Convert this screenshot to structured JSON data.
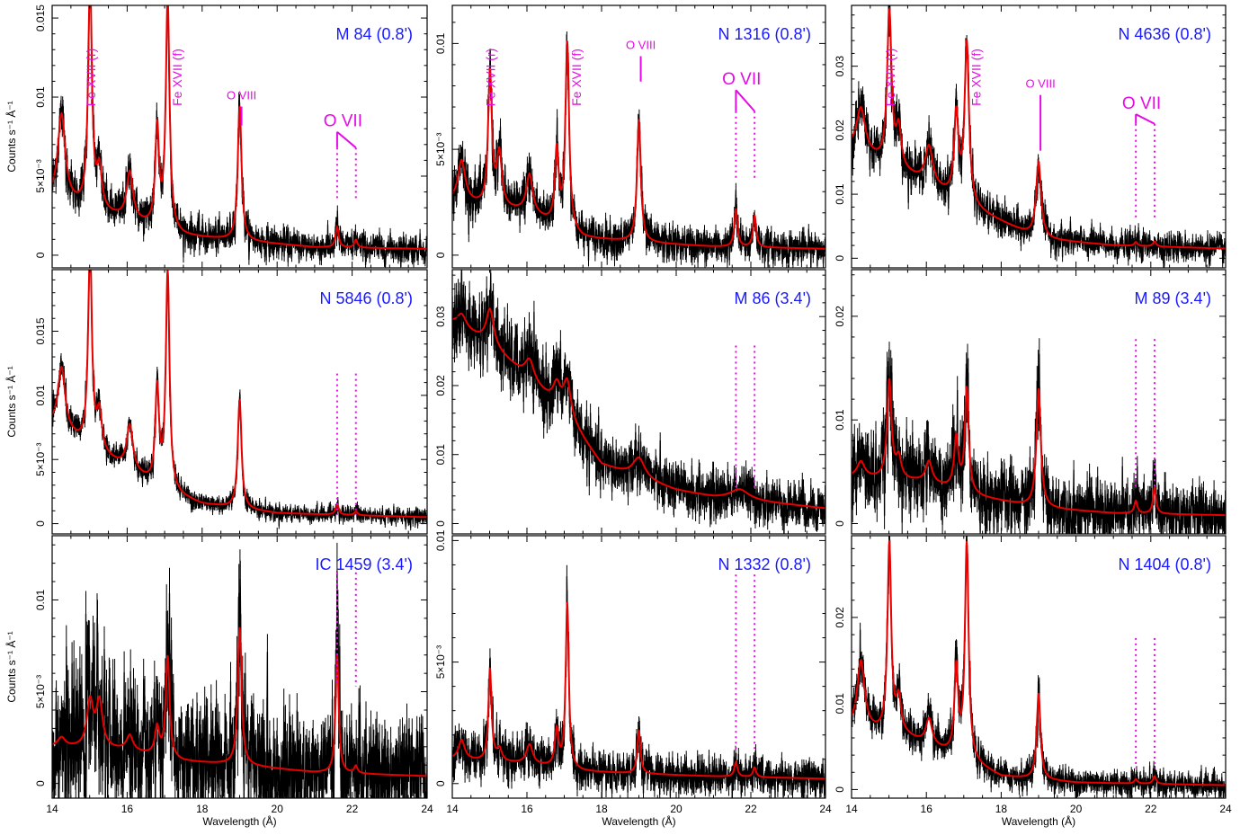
{
  "figure": {
    "xlabel": "Wavelength (Å)",
    "ylabel": "Counts s⁻¹ Å⁻¹",
    "colors": {
      "data": "#000000",
      "model": "#e60000",
      "annotation": "#e60ae6",
      "title": "#1a1aff"
    }
  },
  "chart_data": [
    {
      "type": "line",
      "title": "M 84 (0.8')",
      "xlim": [
        14,
        24
      ],
      "ylim": [
        -0.0008,
        0.0158
      ],
      "yticks": [
        0,
        0.005,
        0.01,
        0.015
      ],
      "ytick_labels": [
        "0",
        "5×10⁻³",
        "0.01",
        "0.015"
      ],
      "xticks": [
        14,
        16,
        18,
        20,
        22,
        24
      ],
      "xtick_labels": [
        "",
        "",
        "",
        "",
        "",
        ""
      ],
      "baseline": [
        [
          14,
          0.0035
        ],
        [
          16,
          0.0022
        ],
        [
          17.5,
          0.0012
        ],
        [
          19,
          0.0009
        ],
        [
          21,
          0.0005
        ],
        [
          24,
          0.0004
        ]
      ],
      "peaks": [
        [
          14.25,
          0.0055,
          0.12
        ],
        [
          15.01,
          0.0145,
          0.06
        ],
        [
          15.26,
          0.0025,
          0.08
        ],
        [
          16.07,
          0.003,
          0.1
        ],
        [
          16.8,
          0.0062,
          0.06
        ],
        [
          17.08,
          0.0145,
          0.06
        ],
        [
          19.0,
          0.0085,
          0.06
        ],
        [
          21.6,
          0.0013,
          0.05
        ],
        [
          22.1,
          0.0005,
          0.05
        ]
      ],
      "noise": 0.0007,
      "annotations": {
        "fe_r": "Fe XVII (r)",
        "fe_f": "Fe XVII (f)",
        "o8": "O VIII",
        "o7": "O VII"
      },
      "oviii_marker": [
        0.0094,
        0.0082
      ],
      "ovii_line_top": 0.0078,
      "ovii_solid_bottom": 0.0068,
      "ovii_dotted_bottom": 0.0035
    },
    {
      "type": "line",
      "title": "N 1316 (0.8')",
      "xlim": [
        14,
        24
      ],
      "ylim": [
        -0.0006,
        0.0118
      ],
      "yticks": [
        0,
        0.005,
        0.01
      ],
      "ytick_labels": [
        "0",
        "5×10⁻³",
        "0.01"
      ],
      "xticks": [
        14,
        16,
        18,
        20,
        22,
        24
      ],
      "xtick_labels": [
        "",
        "",
        "",
        "",
        "",
        ""
      ],
      "baseline": [
        [
          14,
          0.0025
        ],
        [
          16,
          0.002
        ],
        [
          17.5,
          0.0008
        ],
        [
          19,
          0.0006
        ],
        [
          21,
          0.0004
        ],
        [
          24,
          0.0003
        ]
      ],
      "peaks": [
        [
          14.25,
          0.002,
          0.12
        ],
        [
          15.01,
          0.0063,
          0.06
        ],
        [
          15.26,
          0.0025,
          0.08
        ],
        [
          16.07,
          0.0018,
          0.1
        ],
        [
          16.8,
          0.0035,
          0.06
        ],
        [
          17.08,
          0.0088,
          0.06
        ],
        [
          19.0,
          0.0058,
          0.06
        ],
        [
          21.6,
          0.0018,
          0.05
        ],
        [
          22.1,
          0.0015,
          0.05
        ]
      ],
      "noise": 0.0006,
      "annotations": {
        "fe_r": "Fe XVII (r)",
        "fe_f": "Fe XVII (f)",
        "o8": "O VIII",
        "o7": "O VII"
      },
      "oviii_marker": [
        0.0094,
        0.0082
      ],
      "ovii_line_top": 0.0078,
      "ovii_solid_bottom": 0.0068,
      "ovii_dotted_bottom": 0.0035
    },
    {
      "type": "line",
      "title": "N 4636 (0.8')",
      "xlim": [
        14,
        24
      ],
      "ylim": [
        -0.0015,
        0.0395
      ],
      "yticks": [
        0,
        0.01,
        0.02,
        0.03
      ],
      "ytick_labels": [
        "0",
        "0.01",
        "0.02",
        "0.03"
      ],
      "xticks": [
        14,
        16,
        18,
        20,
        22,
        24
      ],
      "xtick_labels": [
        "",
        "",
        "",
        "",
        "",
        ""
      ],
      "baseline": [
        [
          14,
          0.017
        ],
        [
          15.5,
          0.013
        ],
        [
          17.5,
          0.007
        ],
        [
          19,
          0.003
        ],
        [
          21,
          0.002
        ],
        [
          24,
          0.0015
        ]
      ],
      "peaks": [
        [
          14.25,
          0.007,
          0.14
        ],
        [
          15.01,
          0.024,
          0.07
        ],
        [
          15.26,
          0.006,
          0.08
        ],
        [
          16.07,
          0.006,
          0.12
        ],
        [
          16.8,
          0.013,
          0.07
        ],
        [
          17.08,
          0.025,
          0.07
        ],
        [
          19.0,
          0.012,
          0.08
        ],
        [
          21.6,
          0.0006,
          0.05
        ],
        [
          22.1,
          0.0008,
          0.05
        ]
      ],
      "noise": 0.0016,
      "annotations": {
        "fe_r": "Fe XVII (r)",
        "fe_f": "Fe XVII (f)",
        "o8": "O VIII",
        "o7": "O VII"
      },
      "oviii_marker": [
        0.0255,
        0.0168
      ],
      "ovii_line_top": 0.0225,
      "ovii_solid_bottom": 0.021,
      "ovii_dotted_bottom": 0.0062
    },
    {
      "type": "line",
      "title": "N 5846 (0.8')",
      "xlim": [
        14,
        24
      ],
      "ylim": [
        -0.0008,
        0.0198
      ],
      "yticks": [
        0,
        0.005,
        0.01,
        0.015
      ],
      "ytick_labels": [
        "0",
        "5×10⁻³",
        "0.01",
        "0.015"
      ],
      "xticks": [
        14,
        16,
        18,
        20,
        22,
        24
      ],
      "xtick_labels": [
        "",
        "",
        "",
        "",
        "",
        ""
      ],
      "baseline": [
        [
          14,
          0.0075
        ],
        [
          15.5,
          0.005
        ],
        [
          17,
          0.0025
        ],
        [
          18,
          0.0015
        ],
        [
          20,
          0.0008
        ],
        [
          24,
          0.0005
        ]
      ],
      "peaks": [
        [
          14.25,
          0.005,
          0.12
        ],
        [
          15.01,
          0.0155,
          0.06
        ],
        [
          15.26,
          0.003,
          0.08
        ],
        [
          16.07,
          0.0035,
          0.1
        ],
        [
          16.8,
          0.0075,
          0.06
        ],
        [
          17.08,
          0.017,
          0.06
        ],
        [
          19.0,
          0.0085,
          0.06
        ],
        [
          21.6,
          0.0008,
          0.05
        ],
        [
          22.1,
          0.0003,
          0.05
        ]
      ],
      "noise": 0.0005,
      "annotations": {},
      "ovii_dotted_top": 0.0117,
      "ovii_dotted_bottom": 0.0007
    },
    {
      "type": "line",
      "title": "M 86 (3.4')",
      "xlim": [
        14,
        24
      ],
      "ylim": [
        -0.0015,
        0.0368
      ],
      "yticks": [
        0,
        0.01,
        0.02,
        0.03
      ],
      "ytick_labels": [
        "0",
        "0.01",
        "0.02",
        "0.03"
      ],
      "xticks": [
        14,
        16,
        18,
        20,
        22,
        24
      ],
      "xtick_labels": [
        "",
        "",
        "",
        "",
        "",
        ""
      ],
      "baseline": [
        [
          14,
          0.029
        ],
        [
          15,
          0.026
        ],
        [
          16,
          0.021
        ],
        [
          17,
          0.016
        ],
        [
          18,
          0.0085
        ],
        [
          19,
          0.0065
        ],
        [
          20,
          0.0048
        ],
        [
          21,
          0.0038
        ],
        [
          22,
          0.0033
        ],
        [
          24,
          0.0022
        ]
      ],
      "peaks": [
        [
          14.25,
          0.002,
          0.15
        ],
        [
          15.01,
          0.005,
          0.12
        ],
        [
          16.07,
          0.003,
          0.15
        ],
        [
          16.8,
          0.003,
          0.12
        ],
        [
          17.08,
          0.005,
          0.12
        ],
        [
          19.0,
          0.003,
          0.2
        ],
        [
          21.7,
          0.0015,
          0.3
        ]
      ],
      "noise": 0.0022,
      "annotations": {},
      "ovii_dotted_top": 0.0258,
      "ovii_dotted_bottom": 0.0052
    },
    {
      "type": "line",
      "title": "M 89 (3.4')",
      "xlim": [
        14,
        24
      ],
      "ylim": [
        -0.001,
        0.0245
      ],
      "yticks": [
        0,
        0.01,
        0.02
      ],
      "ytick_labels": [
        "0",
        "0.01",
        "0.02"
      ],
      "xticks": [
        14,
        16,
        18,
        20,
        22,
        24
      ],
      "xtick_labels": [
        "",
        "",
        "",
        "",
        "",
        ""
      ],
      "baseline": [
        [
          14,
          0.0045
        ],
        [
          16,
          0.004
        ],
        [
          17.5,
          0.0025
        ],
        [
          19,
          0.0015
        ],
        [
          21,
          0.001
        ],
        [
          24,
          0.0008
        ]
      ],
      "peaks": [
        [
          14.25,
          0.0015,
          0.12
        ],
        [
          15.01,
          0.0095,
          0.07
        ],
        [
          15.26,
          0.002,
          0.08
        ],
        [
          16.07,
          0.002,
          0.1
        ],
        [
          16.8,
          0.005,
          0.07
        ],
        [
          17.08,
          0.01,
          0.06
        ],
        [
          19.0,
          0.0115,
          0.07
        ],
        [
          21.6,
          0.0012,
          0.05
        ],
        [
          22.1,
          0.0025,
          0.05
        ]
      ],
      "noise": 0.0022,
      "annotations": {},
      "ovii_dotted_top": 0.0178,
      "ovii_dotted_bottom": 0.0034
    },
    {
      "type": "line",
      "title": "IC 1459 (3.4')",
      "xlim": [
        14,
        24
      ],
      "ylim": [
        -0.0008,
        0.0135
      ],
      "yticks": [
        0,
        0.005,
        0.01
      ],
      "ytick_labels": [
        "0",
        "5×10⁻³",
        "0.01"
      ],
      "xticks": [
        14,
        16,
        18,
        20,
        22,
        24
      ],
      "xtick_labels": [
        "14",
        "16",
        "18",
        "20",
        "22",
        "24"
      ],
      "baseline": [
        [
          14,
          0.002
        ],
        [
          16,
          0.0018
        ],
        [
          17.5,
          0.0012
        ],
        [
          19,
          0.001
        ],
        [
          21,
          0.0006
        ],
        [
          24,
          0.0004
        ]
      ],
      "peaks": [
        [
          14.25,
          0.0005,
          0.12
        ],
        [
          15.01,
          0.0025,
          0.1
        ],
        [
          15.26,
          0.0025,
          0.1
        ],
        [
          16.07,
          0.0008,
          0.1
        ],
        [
          16.8,
          0.0015,
          0.07
        ],
        [
          17.08,
          0.0055,
          0.06
        ],
        [
          19.0,
          0.0075,
          0.06
        ],
        [
          21.6,
          0.0065,
          0.05
        ],
        [
          22.1,
          0.0004,
          0.05
        ]
      ],
      "noise": 0.0022,
      "annotations": {},
      "ovii_dotted_top": 0.0115,
      "ovii_dotted_bottom": 0.0053
    },
    {
      "type": "line",
      "title": "N 1332 (0.8')",
      "xlim": [
        14,
        24
      ],
      "ylim": [
        -0.0006,
        0.0102
      ],
      "yticks": [
        0,
        0.005,
        0.01
      ],
      "ytick_labels": [
        "0",
        "5×10⁻³",
        "0.01"
      ],
      "xticks": [
        14,
        16,
        18,
        20,
        22,
        24
      ],
      "xtick_labels": [
        "14",
        "16",
        "18",
        "20",
        "22",
        "24"
      ],
      "baseline": [
        [
          14,
          0.001
        ],
        [
          16,
          0.0008
        ],
        [
          17.5,
          0.0005
        ],
        [
          19,
          0.0004
        ],
        [
          21,
          0.0003
        ],
        [
          24,
          0.0002
        ]
      ],
      "peaks": [
        [
          14.25,
          0.0008,
          0.1
        ],
        [
          15.01,
          0.0038,
          0.05
        ],
        [
          15.26,
          0.0005,
          0.08
        ],
        [
          16.07,
          0.0008,
          0.1
        ],
        [
          16.8,
          0.0015,
          0.06
        ],
        [
          17.08,
          0.0068,
          0.05
        ],
        [
          19.0,
          0.0018,
          0.05
        ],
        [
          21.6,
          0.0006,
          0.05
        ],
        [
          22.1,
          0.0004,
          0.05
        ]
      ],
      "noise": 0.0006,
      "annotations": {},
      "ovii_dotted_top": 0.0086,
      "ovii_dotted_bottom": 0.0013
    },
    {
      "type": "line",
      "title": "N 1404 (0.8')",
      "xlim": [
        14,
        24
      ],
      "ylim": [
        -0.001,
        0.0295
      ],
      "yticks": [
        0,
        0.01,
        0.02
      ],
      "ytick_labels": [
        "0",
        "0.01",
        "0.02"
      ],
      "xticks": [
        14,
        16,
        18,
        20,
        22,
        24
      ],
      "xtick_labels": [
        "14",
        "16",
        "18",
        "20",
        "22",
        "24"
      ],
      "baseline": [
        [
          14,
          0.007
        ],
        [
          15.5,
          0.006
        ],
        [
          17,
          0.0035
        ],
        [
          18,
          0.0015
        ],
        [
          20,
          0.0008
        ],
        [
          24,
          0.0005
        ]
      ],
      "peaks": [
        [
          14.25,
          0.008,
          0.12
        ],
        [
          15.01,
          0.022,
          0.06
        ],
        [
          15.26,
          0.004,
          0.08
        ],
        [
          16.07,
          0.003,
          0.1
        ],
        [
          16.8,
          0.01,
          0.06
        ],
        [
          17.08,
          0.025,
          0.06
        ],
        [
          19.0,
          0.01,
          0.06
        ],
        [
          21.6,
          0.0005,
          0.05
        ],
        [
          22.1,
          0.0009,
          0.05
        ]
      ],
      "noise": 0.0012,
      "annotations": {},
      "ovii_dotted_top": 0.0176,
      "ovii_dotted_bottom": 0.0025
    }
  ]
}
